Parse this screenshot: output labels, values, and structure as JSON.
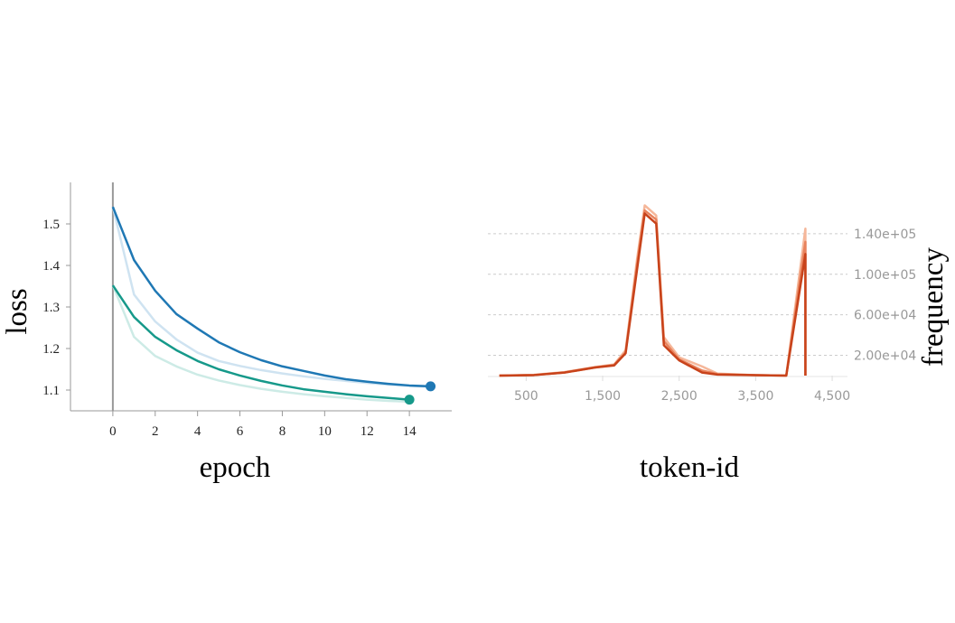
{
  "chart_data": [
    {
      "type": "line",
      "xlabel": "epoch",
      "ylabel": "loss",
      "xlim": [
        -2,
        16
      ],
      "xticks": [
        0,
        2,
        4,
        6,
        8,
        10,
        12,
        14
      ],
      "ylim": [
        1.05,
        1.6
      ],
      "yticks": [
        1.1,
        1.2,
        1.3,
        1.4,
        1.5
      ],
      "vline": 0,
      "grid": false,
      "y_axis_side": "left",
      "series": [
        {
          "color": "#cfe3f1",
          "x": [
            0,
            1,
            2,
            3,
            4,
            5,
            6,
            7,
            8,
            9,
            10,
            11,
            12,
            13,
            14,
            15
          ],
          "values": [
            1.541,
            1.33,
            1.265,
            1.222,
            1.19,
            1.17,
            1.158,
            1.148,
            1.14,
            1.133,
            1.127,
            1.122,
            1.117,
            1.113,
            1.11,
            1.108
          ],
          "end_marker": false
        },
        {
          "color": "#cdebe6",
          "x": [
            0,
            1,
            2,
            3,
            4,
            5,
            6,
            7,
            8,
            9,
            10,
            11,
            12,
            13,
            14
          ],
          "values": [
            1.352,
            1.228,
            1.182,
            1.157,
            1.137,
            1.123,
            1.112,
            1.103,
            1.096,
            1.09,
            1.085,
            1.081,
            1.077,
            1.074,
            1.072
          ],
          "end_marker": false
        },
        {
          "color": "#1f78b4",
          "x": [
            0,
            1,
            2,
            3,
            4,
            5,
            6,
            7,
            8,
            9,
            10,
            11,
            12,
            13,
            14,
            15
          ],
          "values": [
            1.541,
            1.413,
            1.339,
            1.283,
            1.248,
            1.215,
            1.191,
            1.172,
            1.157,
            1.146,
            1.135,
            1.126,
            1.12,
            1.115,
            1.111,
            1.109
          ],
          "end_marker": true
        },
        {
          "color": "#16998a",
          "x": [
            0,
            1,
            2,
            3,
            4,
            5,
            6,
            7,
            8,
            9,
            10,
            11,
            12,
            13,
            14
          ],
          "values": [
            1.352,
            1.276,
            1.228,
            1.196,
            1.17,
            1.15,
            1.135,
            1.122,
            1.111,
            1.102,
            1.096,
            1.09,
            1.085,
            1.081,
            1.077
          ],
          "end_marker": true
        }
      ]
    },
    {
      "type": "line",
      "xlabel": "token-id",
      "ylabel": "frequency",
      "xlim": [
        0,
        4700
      ],
      "xticks": [
        500,
        {
          "value": 1500,
          "label": "1,500"
        },
        {
          "value": 2500,
          "label": "2,500"
        },
        {
          "value": 3500,
          "label": "3,500"
        },
        {
          "value": 4500,
          "label": "4,500"
        }
      ],
      "ylim": [
        0,
        180000
      ],
      "yticks": [
        {
          "value": 20000,
          "label": "2.00e+04"
        },
        {
          "value": 60000,
          "label": "6.00e+04"
        },
        {
          "value": 100000,
          "label": "1.00e+05"
        },
        {
          "value": 140000,
          "label": "1.40e+05"
        }
      ],
      "grid": true,
      "y_axis_side": "right",
      "series": [
        {
          "color": "#f5b79a",
          "x": [
            150,
            600,
            1000,
            1400,
            1650,
            1800,
            1950,
            2050,
            2200,
            2300,
            2500,
            2800,
            3000,
            3500,
            3900,
            4150,
            4150
          ],
          "values": [
            0,
            800,
            3500,
            8500,
            11000,
            25000,
            115000,
            168000,
            158000,
            38000,
            18000,
            9000,
            2000,
            500,
            0,
            145000,
            0
          ],
          "end_marker": false
        },
        {
          "color": "#e8825c",
          "x": [
            150,
            600,
            1000,
            1400,
            1650,
            1800,
            1950,
            2050,
            2200,
            2300,
            2500,
            2800,
            3000,
            3500,
            3900,
            4150,
            4150
          ],
          "values": [
            0,
            600,
            3000,
            8000,
            10500,
            23000,
            110000,
            163000,
            154000,
            34000,
            16000,
            5000,
            1500,
            500,
            0,
            132000,
            0
          ],
          "end_marker": false
        },
        {
          "color": "#c8431b",
          "x": [
            150,
            600,
            1000,
            1400,
            1650,
            1800,
            1950,
            2050,
            2200,
            2300,
            2500,
            2800,
            3000,
            3500,
            3900,
            4150,
            4150
          ],
          "values": [
            0,
            500,
            3000,
            8000,
            10000,
            22000,
            105000,
            160000,
            150000,
            30000,
            15000,
            3000,
            1000,
            500,
            0,
            120000,
            0
          ],
          "end_marker": false
        }
      ]
    }
  ]
}
